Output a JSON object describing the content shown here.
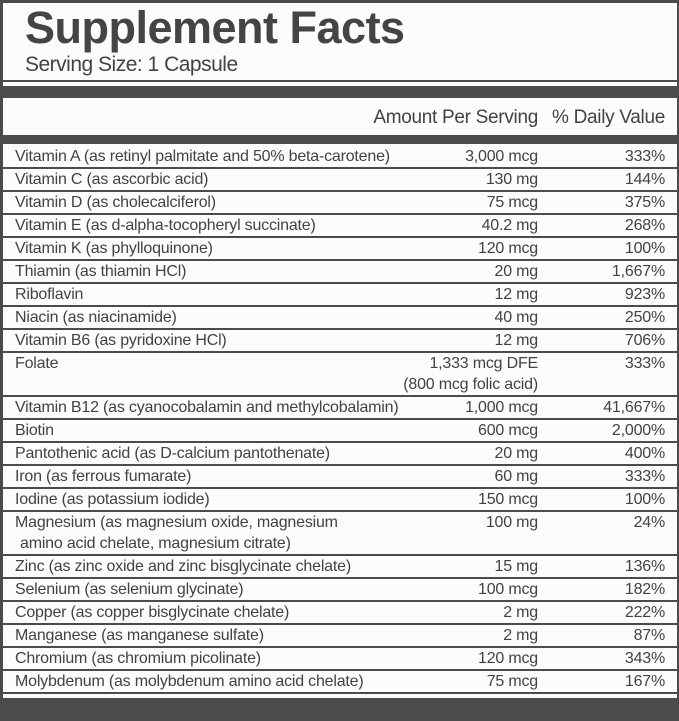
{
  "title": "Supplement Facts",
  "serving_size": "Serving Size: 1 Capsule",
  "columns": {
    "amount": "Amount Per Serving",
    "daily_value": "% Daily Value"
  },
  "colors": {
    "bar": "#4b4b4b",
    "text": "#464646",
    "background": "#fcfcfc"
  },
  "rows": [
    {
      "name": "Vitamin A (as retinyl palmitate and 50% beta-carotene)",
      "amount": "3,000 mcg",
      "pct": "333%"
    },
    {
      "name": "Vitamin C (as ascorbic acid)",
      "amount": "130 mg",
      "pct": "144%"
    },
    {
      "name": "Vitamin D (as cholecalciferol)",
      "amount": "75 mcg",
      "pct": "375%"
    },
    {
      "name": "Vitamin E (as d-alpha-tocopheryl succinate)",
      "amount": "40.2 mg",
      "pct": "268%"
    },
    {
      "name": "Vitamin K (as phylloquinone)",
      "amount": "120 mcg",
      "pct": "100%"
    },
    {
      "name": "Thiamin (as thiamin HCl)",
      "amount": "20 mg",
      "pct": "1,667%"
    },
    {
      "name": "Riboflavin",
      "amount": "12 mg",
      "pct": "923%"
    },
    {
      "name": "Niacin (as niacinamide)",
      "amount": "40 mg",
      "pct": "250%"
    },
    {
      "name": "Vitamin B6 (as pyridoxine HCl)",
      "amount": "12 mg",
      "pct": "706%"
    },
    {
      "name": "Folate",
      "amount": "1,333 mcg DFE",
      "amount2": "(800 mcg folic acid)",
      "pct": "333%"
    },
    {
      "name": "Vitamin B12 (as cyanocobalamin and methylcobalamin)",
      "amount": "1,000 mcg",
      "pct": "41,667%"
    },
    {
      "name": "Biotin",
      "amount": "600 mcg",
      "pct": "2,000%"
    },
    {
      "name": "Pantothenic acid (as D-calcium pantothenate)",
      "amount": "20 mg",
      "pct": "400%"
    },
    {
      "name": "Iron (as ferrous fumarate)",
      "amount": "60 mg",
      "pct": "333%"
    },
    {
      "name": "Iodine (as potassium iodide)",
      "amount": "150 mcg",
      "pct": "100%"
    },
    {
      "name": "Magnesium (as magnesium oxide, magnesium",
      "name2": "amino acid chelate, magnesium citrate)",
      "amount": "100 mg",
      "pct": "24%"
    },
    {
      "name": "Zinc (as zinc oxide and zinc bisglycinate chelate)",
      "amount": "15 mg",
      "pct": "136%"
    },
    {
      "name": "Selenium (as selenium glycinate)",
      "amount": "100 mcg",
      "pct": "182%"
    },
    {
      "name": "Copper (as copper bisglycinate chelate)",
      "amount": "2 mg",
      "pct": "222%"
    },
    {
      "name": "Manganese (as manganese sulfate)",
      "amount": "2 mg",
      "pct": "87%"
    },
    {
      "name": "Chromium (as chromium picolinate)",
      "amount": "120 mcg",
      "pct": "343%"
    },
    {
      "name": "Molybdenum (as molybdenum amino acid chelate)",
      "amount": "75 mcg",
      "pct": "167%"
    }
  ]
}
